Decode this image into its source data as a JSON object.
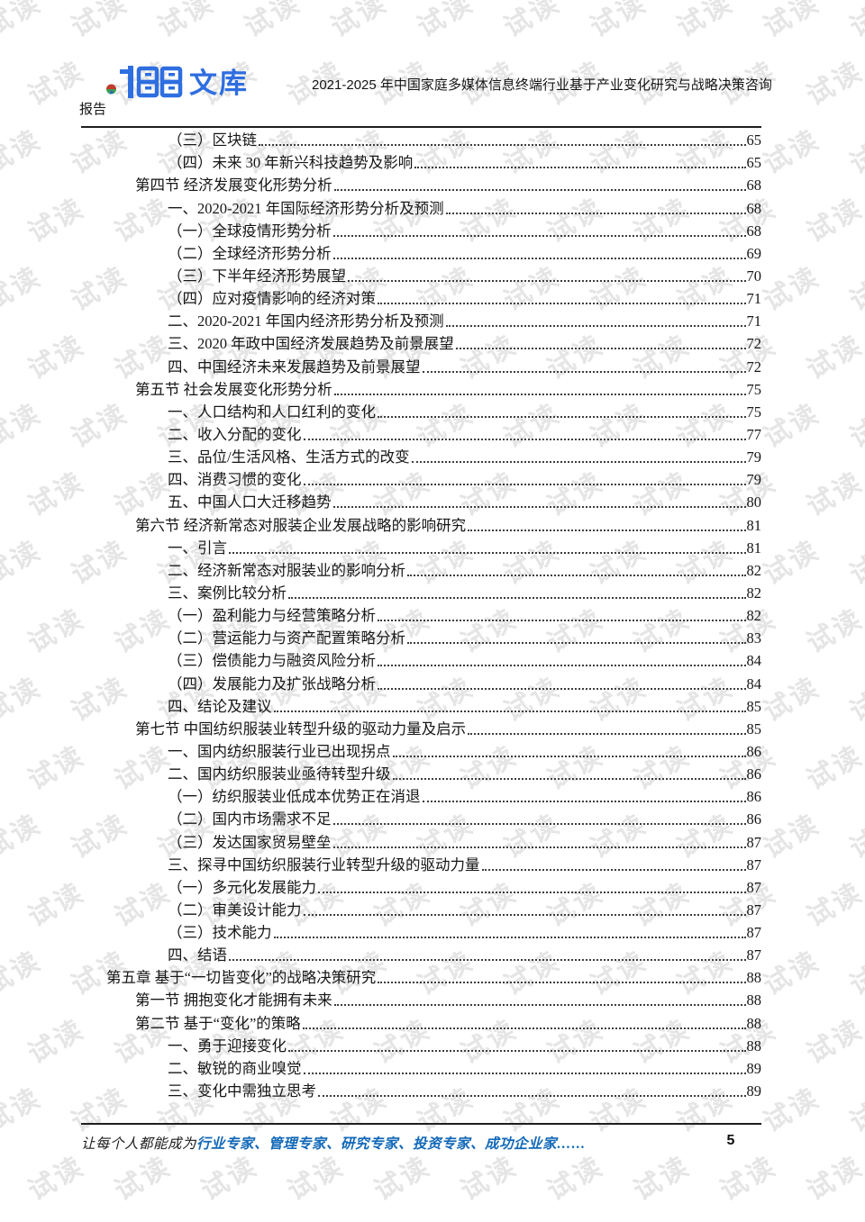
{
  "watermark": {
    "text": "试读"
  },
  "colors": {
    "logo_blue": "#2e6ee0",
    "footer_blue": "#1268b8",
    "rule": "#1e1e1e"
  },
  "header": {
    "logo": {
      "digits": "155",
      "text": "文库"
    },
    "title_line1": "2021-2025 年中国家庭多媒体信息终端行业基于产业变化研究与战略决策咨询",
    "title_line2": "报告"
  },
  "toc": {
    "entries": [
      {
        "level": 2,
        "label": "（三）区块链",
        "page": "65"
      },
      {
        "level": 2,
        "label": "（四）未来 30 年新兴科技趋势及影响",
        "page": "65"
      },
      {
        "level": 1,
        "label": "第四节 经济发展变化形势分析",
        "page": "68"
      },
      {
        "level": 2,
        "label": "一、2020-2021 年国际经济形势分析及预测",
        "page": "68"
      },
      {
        "level": 2,
        "label": "（一）全球疫情形势分析",
        "page": "68"
      },
      {
        "level": 2,
        "label": "（二）全球经济形势分析",
        "page": "69"
      },
      {
        "level": 2,
        "label": "（三）下半年经济形势展望",
        "page": "70"
      },
      {
        "level": 2,
        "label": "（四）应对疫情影响的经济对策",
        "page": "71"
      },
      {
        "level": 2,
        "label": "二、2020-2021 年国内经济形势分析及预测",
        "page": "71"
      },
      {
        "level": 2,
        "label": "三、2020 年政中国经济发展趋势及前景展望",
        "page": "72"
      },
      {
        "level": 2,
        "label": "四、中国经济未来发展趋势及前景展望",
        "page": "72"
      },
      {
        "level": 1,
        "label": "第五节 社会发展变化形势分析",
        "page": "75"
      },
      {
        "level": 2,
        "label": "一、人口结构和人口红利的变化",
        "page": "75"
      },
      {
        "level": 2,
        "label": "二、收入分配的变化",
        "page": "77"
      },
      {
        "level": 2,
        "label": "三、品位/生活风格、生活方式的改变",
        "page": "79"
      },
      {
        "level": 2,
        "label": "四、消费习惯的变化",
        "page": "79"
      },
      {
        "level": 2,
        "label": "五、中国人口大迁移趋势",
        "page": "80"
      },
      {
        "level": 1,
        "label": "第六节 经济新常态对服装企业发展战略的影响研究",
        "page": "81"
      },
      {
        "level": 2,
        "label": "一、引言",
        "page": "81"
      },
      {
        "level": 2,
        "label": "二、经济新常态对服装业的影响分析",
        "page": "82"
      },
      {
        "level": 2,
        "label": "三、案例比较分析",
        "page": "82"
      },
      {
        "level": 2,
        "label": "（一）盈利能力与经营策略分析",
        "page": "82"
      },
      {
        "level": 2,
        "label": "（二）营运能力与资产配置策略分析",
        "page": "83"
      },
      {
        "level": 2,
        "label": "（三）偿债能力与融资风险分析",
        "page": "84"
      },
      {
        "level": 2,
        "label": "（四）发展能力及扩张战略分析",
        "page": "84"
      },
      {
        "level": 2,
        "label": "四、结论及建议",
        "page": "85"
      },
      {
        "level": 1,
        "label": "第七节 中国纺织服装业转型升级的驱动力量及启示",
        "page": "85"
      },
      {
        "level": 2,
        "label": "一、国内纺织服装行业已出现拐点",
        "page": "86"
      },
      {
        "level": 2,
        "label": "二、国内纺织服装业亟待转型升级",
        "page": "86"
      },
      {
        "level": 2,
        "label": "（一）纺织服装业低成本优势正在消退",
        "page": "86"
      },
      {
        "level": 2,
        "label": "（二）国内市场需求不足",
        "page": "86"
      },
      {
        "level": 2,
        "label": "（三）发达国家贸易壁垒",
        "page": "87"
      },
      {
        "level": 2,
        "label": "三、探寻中国纺织服装行业转型升级的驱动力量",
        "page": "87"
      },
      {
        "level": 2,
        "label": "（一）多元化发展能力",
        "page": "87"
      },
      {
        "level": 2,
        "label": "（二）审美设计能力",
        "page": "87"
      },
      {
        "level": 2,
        "label": "（三）技术能力",
        "page": "87"
      },
      {
        "level": 2,
        "label": "四、结语",
        "page": "87"
      },
      {
        "level": 0,
        "label": "第五章 基于“一切皆变化”的战略决策研究",
        "page": "88"
      },
      {
        "level": 1,
        "label": "第一节 拥抱变化才能拥有未来",
        "page": "88"
      },
      {
        "level": 1,
        "label": "第二节 基于“变化”的策略",
        "page": "88"
      },
      {
        "level": 2,
        "label": "一、勇于迎接变化",
        "page": "88"
      },
      {
        "level": 2,
        "label": "二、敏锐的商业嗅觉",
        "page": "89"
      },
      {
        "level": 2,
        "label": "三、变化中需独立思考",
        "page": "89"
      }
    ]
  },
  "footer": {
    "prefix": "让每个人都能成为",
    "highlight": "行业专家、管理专家、研究专家、投资专家、成功企业家……",
    "page_number": "5"
  }
}
